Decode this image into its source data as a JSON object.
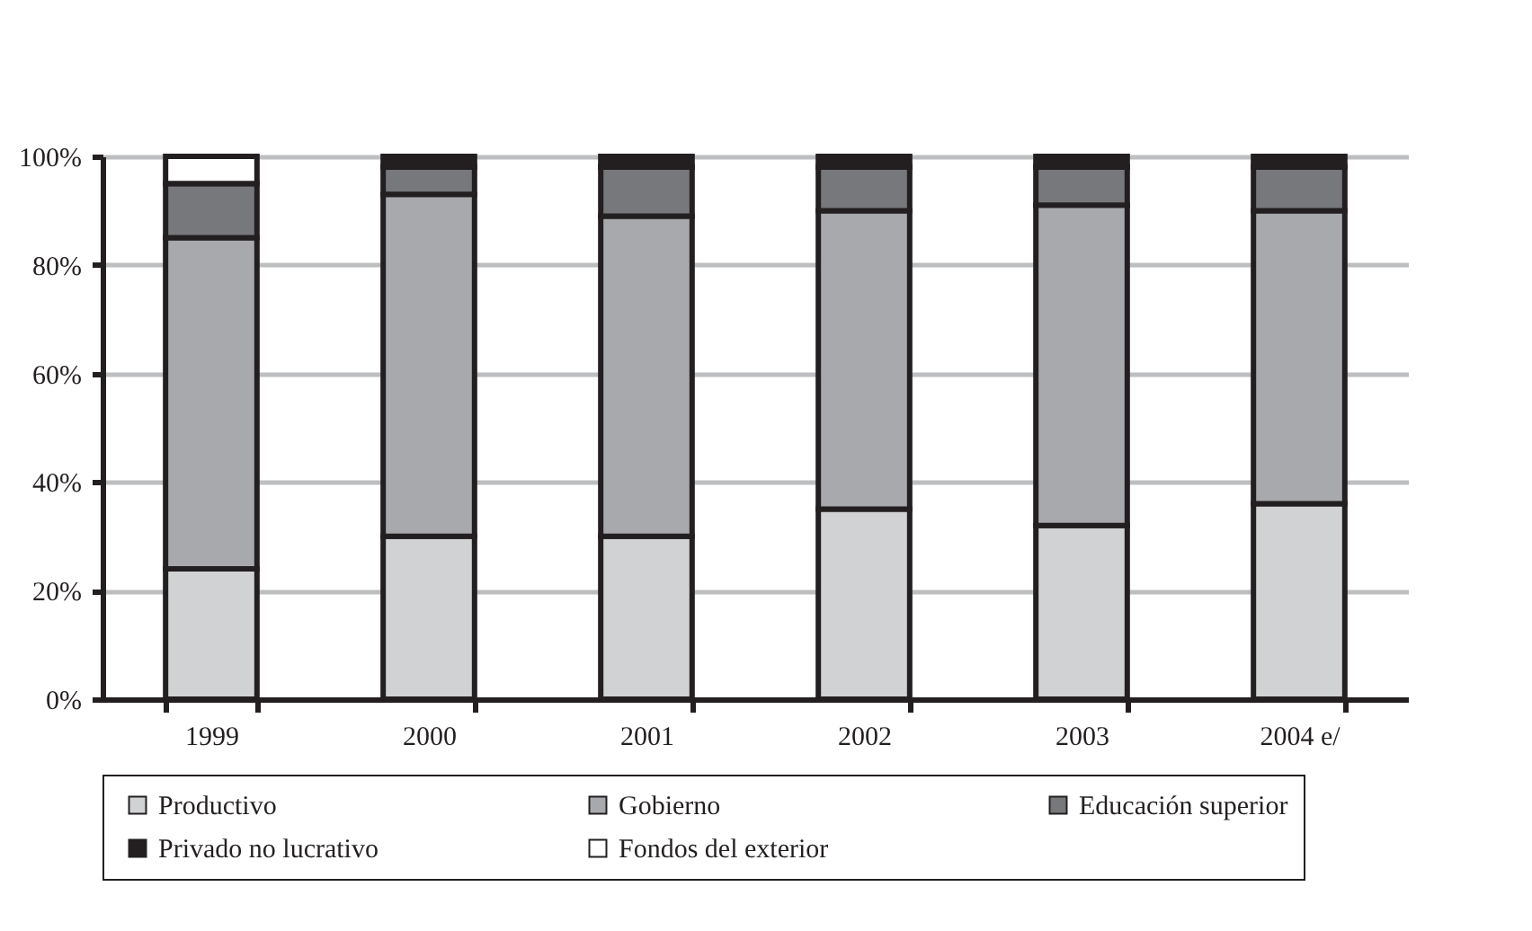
{
  "chart_data": {
    "type": "bar",
    "stacked": true,
    "categories": [
      "1999",
      "2000",
      "2001",
      "2002",
      "2003",
      "2004 e/"
    ],
    "series": [
      {
        "name": "Productivo",
        "color": "#d1d2d4",
        "values": [
          24,
          30,
          30,
          35,
          32,
          36
        ]
      },
      {
        "name": "Gobierno",
        "color": "#a8a9ac",
        "values": [
          61,
          63,
          59,
          55,
          59,
          54
        ]
      },
      {
        "name": "Educación superior",
        "color": "#77787b",
        "values": [
          10,
          5,
          9,
          8,
          7,
          8
        ]
      },
      {
        "name": "Privado no lucrativo",
        "color": "#231f20",
        "values": [
          0,
          2,
          2,
          2,
          2,
          2
        ]
      },
      {
        "name": "Fondos del exterior",
        "color": "#ffffff",
        "values": [
          5,
          null,
          null,
          null,
          null,
          null
        ]
      }
    ],
    "ylim": [
      0,
      100
    ],
    "yticks": [
      {
        "value": 0,
        "label": "0%"
      },
      {
        "value": 20,
        "label": "20%"
      },
      {
        "value": 40,
        "label": "40%"
      },
      {
        "value": 60,
        "label": "60%"
      },
      {
        "value": 80,
        "label": "80%"
      },
      {
        "value": 100,
        "label": "100%"
      }
    ],
    "grid": "y",
    "legend": "bottom"
  }
}
